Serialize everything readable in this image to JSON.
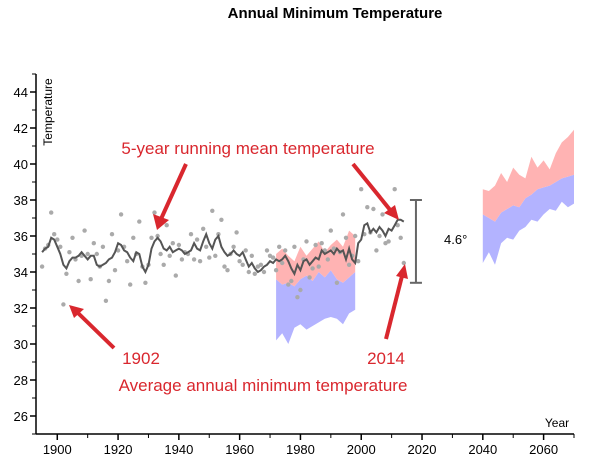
{
  "chart_data": {
    "type": "line",
    "title": "Annual Minimum Temperature",
    "xlabel": "Year",
    "ylabel": "Temperature",
    "xlim": [
      1893,
      2070
    ],
    "ylim": [
      25,
      45
    ],
    "x_ticks": [
      1900,
      1920,
      1940,
      1960,
      1980,
      2000,
      2020,
      2040,
      2060
    ],
    "y_ticks": [
      26,
      28,
      30,
      32,
      34,
      36,
      38,
      40,
      42,
      44
    ],
    "grid": false,
    "colors": {
      "line": "#555555",
      "points": "#aaaaaa",
      "high_band": "#ffb3b3",
      "low_band": "#b3b3ff",
      "annotation": "#d9272e",
      "range_bar": "#666666"
    },
    "annotations": {
      "running_mean": "5-year running mean temperature",
      "year_1902": "1902",
      "year_2014": "2014",
      "average_min": "Average annual minimum temperature",
      "range": "4.6°"
    },
    "range_bar": {
      "x": 2018,
      "y_low": 33.4,
      "y_high": 38.0
    },
    "points": [
      [
        1895,
        34.3
      ],
      [
        1896,
        35.3
      ],
      [
        1897,
        35.5
      ],
      [
        1898,
        37.3
      ],
      [
        1899,
        36.1
      ],
      [
        1900,
        35.8
      ],
      [
        1901,
        35.4
      ],
      [
        1902,
        32.2
      ],
      [
        1903,
        33.9
      ],
      [
        1904,
        35.1
      ],
      [
        1905,
        35.9
      ],
      [
        1906,
        34.7
      ],
      [
        1907,
        33.5
      ],
      [
        1908,
        34.9
      ],
      [
        1909,
        36.3
      ],
      [
        1910,
        35.0
      ],
      [
        1911,
        33.6
      ],
      [
        1912,
        35.6
      ],
      [
        1913,
        35.0
      ],
      [
        1914,
        34.3
      ],
      [
        1915,
        35.4
      ],
      [
        1916,
        32.4
      ],
      [
        1917,
        33.5
      ],
      [
        1918,
        36.1
      ],
      [
        1919,
        34.1
      ],
      [
        1920,
        35.2
      ],
      [
        1921,
        37.2
      ],
      [
        1922,
        35.4
      ],
      [
        1923,
        34.6
      ],
      [
        1924,
        33.3
      ],
      [
        1925,
        35.9
      ],
      [
        1926,
        35.0
      ],
      [
        1927,
        36.8
      ],
      [
        1928,
        34.3
      ],
      [
        1929,
        33.4
      ],
      [
        1930,
        34.4
      ],
      [
        1931,
        35.9
      ],
      [
        1932,
        37.3
      ],
      [
        1933,
        36.0
      ],
      [
        1934,
        35.0
      ],
      [
        1935,
        34.4
      ],
      [
        1936,
        36.6
      ],
      [
        1937,
        34.9
      ],
      [
        1938,
        35.6
      ],
      [
        1939,
        33.8
      ],
      [
        1940,
        35.5
      ],
      [
        1941,
        34.7
      ],
      [
        1942,
        35.1
      ],
      [
        1943,
        35.0
      ],
      [
        1944,
        36.1
      ],
      [
        1945,
        34.7
      ],
      [
        1946,
        35.8
      ],
      [
        1947,
        34.6
      ],
      [
        1948,
        36.4
      ],
      [
        1949,
        35.4
      ],
      [
        1950,
        34.8
      ],
      [
        1951,
        37.4
      ],
      [
        1952,
        34.9
      ],
      [
        1953,
        36.1
      ],
      [
        1954,
        36.9
      ],
      [
        1955,
        34.3
      ],
      [
        1956,
        34.1
      ],
      [
        1957,
        35.0
      ],
      [
        1958,
        35.4
      ],
      [
        1959,
        36.2
      ],
      [
        1960,
        34.6
      ],
      [
        1961,
        34.4
      ],
      [
        1962,
        35.2
      ],
      [
        1963,
        34.0
      ],
      [
        1964,
        34.9
      ],
      [
        1965,
        33.9
      ],
      [
        1966,
        34.3
      ],
      [
        1967,
        34.4
      ],
      [
        1968,
        34.0
      ],
      [
        1969,
        35.2
      ],
      [
        1970,
        34.9
      ],
      [
        1971,
        34.8
      ],
      [
        1972,
        34.1
      ],
      [
        1973,
        35.4
      ],
      [
        1974,
        34.5
      ],
      [
        1975,
        35.2
      ],
      [
        1976,
        33.3
      ],
      [
        1977,
        33.5
      ],
      [
        1978,
        35.4
      ],
      [
        1979,
        32.6
      ],
      [
        1980,
        33.0
      ],
      [
        1981,
        34.7
      ],
      [
        1982,
        35.7
      ],
      [
        1983,
        33.7
      ],
      [
        1984,
        34.2
      ],
      [
        1985,
        35.5
      ],
      [
        1986,
        34.3
      ],
      [
        1987,
        35.6
      ],
      [
        1988,
        35.2
      ],
      [
        1989,
        34.7
      ],
      [
        1990,
        36.3
      ],
      [
        1991,
        35.3
      ],
      [
        1992,
        33.4
      ],
      [
        1993,
        35.1
      ],
      [
        1994,
        37.2
      ],
      [
        1995,
        35.9
      ],
      [
        1996,
        34.4
      ],
      [
        1997,
        34.9
      ],
      [
        1998,
        36.0
      ],
      [
        1999,
        34.6
      ],
      [
        2000,
        38.6
      ],
      [
        2001,
        36.1
      ],
      [
        2002,
        37.6
      ],
      [
        2003,
        36.2
      ],
      [
        2004,
        37.5
      ],
      [
        2005,
        35.2
      ],
      [
        2006,
        36.0
      ],
      [
        2007,
        37.2
      ],
      [
        2008,
        35.6
      ],
      [
        2009,
        35.7
      ],
      [
        2010,
        37.3
      ],
      [
        2011,
        38.6
      ],
      [
        2012,
        36.6
      ],
      [
        2013,
        35.9
      ],
      [
        2014,
        34.5
      ]
    ],
    "running_mean": [
      [
        1895,
        35.1
      ],
      [
        1896,
        35.3
      ],
      [
        1897,
        35.4
      ],
      [
        1898,
        35.9
      ],
      [
        1899,
        35.8
      ],
      [
        1900,
        35.4
      ],
      [
        1901,
        35.0
      ],
      [
        1902,
        34.4
      ],
      [
        1903,
        34.2
      ],
      [
        1904,
        34.6
      ],
      [
        1905,
        34.8
      ],
      [
        1906,
        34.8
      ],
      [
        1907,
        34.9
      ],
      [
        1908,
        35.1
      ],
      [
        1909,
        34.9
      ],
      [
        1910,
        34.7
      ],
      [
        1911,
        34.9
      ],
      [
        1912,
        34.9
      ],
      [
        1913,
        34.4
      ],
      [
        1914,
        34.3
      ],
      [
        1915,
        34.4
      ],
      [
        1916,
        34.5
      ],
      [
        1917,
        34.7
      ],
      [
        1918,
        34.8
      ],
      [
        1919,
        35.1
      ],
      [
        1920,
        35.6
      ],
      [
        1921,
        35.5
      ],
      [
        1922,
        35.2
      ],
      [
        1923,
        35.1
      ],
      [
        1924,
        34.8
      ],
      [
        1925,
        34.6
      ],
      [
        1926,
        35.1
      ],
      [
        1927,
        35.0
      ],
      [
        1928,
        34.3
      ],
      [
        1929,
        34.0
      ],
      [
        1930,
        34.4
      ],
      [
        1931,
        35.3
      ],
      [
        1932,
        35.7
      ],
      [
        1933,
        35.9
      ],
      [
        1934,
        35.7
      ],
      [
        1935,
        35.3
      ],
      [
        1936,
        35.2
      ],
      [
        1937,
        35.4
      ],
      [
        1938,
        35.1
      ],
      [
        1939,
        35.2
      ],
      [
        1940,
        35.3
      ],
      [
        1941,
        35.2
      ],
      [
        1942,
        35.0
      ],
      [
        1943,
        35.1
      ],
      [
        1944,
        35.2
      ],
      [
        1945,
        35.6
      ],
      [
        1946,
        35.3
      ],
      [
        1947,
        35.2
      ],
      [
        1948,
        35.7
      ],
      [
        1949,
        36.1
      ],
      [
        1950,
        35.6
      ],
      [
        1951,
        35.3
      ],
      [
        1952,
        35.8
      ],
      [
        1953,
        36.0
      ],
      [
        1954,
        35.4
      ],
      [
        1955,
        35.1
      ],
      [
        1956,
        34.9
      ],
      [
        1957,
        35.0
      ],
      [
        1958,
        35.2
      ],
      [
        1959,
        35.0
      ],
      [
        1960,
        34.9
      ],
      [
        1961,
        35.1
      ],
      [
        1962,
        34.7
      ],
      [
        1963,
        34.3
      ],
      [
        1964,
        34.5
      ],
      [
        1965,
        34.2
      ],
      [
        1966,
        34.0
      ],
      [
        1967,
        34.1
      ],
      [
        1968,
        34.3
      ],
      [
        1969,
        34.4
      ],
      [
        1970,
        34.6
      ],
      [
        1971,
        34.5
      ],
      [
        1972,
        34.7
      ],
      [
        1973,
        34.6
      ],
      [
        1974,
        34.7
      ],
      [
        1975,
        34.9
      ],
      [
        1976,
        34.6
      ],
      [
        1977,
        34.2
      ],
      [
        1978,
        33.9
      ],
      [
        1979,
        34.4
      ],
      [
        1980,
        34.1
      ],
      [
        1981,
        34.6
      ],
      [
        1982,
        34.7
      ],
      [
        1983,
        34.4
      ],
      [
        1984,
        34.6
      ],
      [
        1985,
        34.8
      ],
      [
        1986,
        34.7
      ],
      [
        1987,
        35.2
      ],
      [
        1988,
        35.0
      ],
      [
        1989,
        35.1
      ],
      [
        1990,
        35.2
      ],
      [
        1991,
        35.0
      ],
      [
        1992,
        35.3
      ],
      [
        1993,
        35.1
      ],
      [
        1994,
        35.2
      ],
      [
        1995,
        34.7
      ],
      [
        1996,
        35.3
      ],
      [
        1997,
        34.7
      ],
      [
        1998,
        34.5
      ],
      [
        1999,
        35.6
      ],
      [
        2000,
        35.8
      ],
      [
        2001,
        36.6
      ],
      [
        2002,
        36.7
      ],
      [
        2003,
        36.2
      ],
      [
        2004,
        36.4
      ],
      [
        2005,
        36.2
      ],
      [
        2006,
        36.5
      ],
      [
        2007,
        36.3
      ],
      [
        2008,
        36.0
      ],
      [
        2009,
        36.4
      ],
      [
        2010,
        36.3
      ],
      [
        2011,
        36.6
      ],
      [
        2012,
        36.9
      ],
      [
        2013,
        36.9
      ],
      [
        2014,
        36.8
      ]
    ],
    "projections": {
      "historical_high": [
        [
          1972,
          35.0,
          33.6
        ],
        [
          1974,
          35.3,
          33.3
        ],
        [
          1976,
          34.9,
          33.4
        ],
        [
          1978,
          34.6,
          33.2
        ],
        [
          1980,
          35.4,
          33.6
        ],
        [
          1982,
          34.9,
          33.8
        ],
        [
          1984,
          35.3,
          33.5
        ],
        [
          1986,
          35.7,
          34.0
        ],
        [
          1988,
          35.1,
          33.7
        ],
        [
          1990,
          35.5,
          34.1
        ],
        [
          1992,
          35.8,
          33.6
        ],
        [
          1994,
          35.4,
          33.4
        ],
        [
          1996,
          36.3,
          33.7
        ],
        [
          1998,
          36.0,
          34.0
        ]
      ],
      "historical_low": [
        [
          1972,
          33.6,
          30.2
        ],
        [
          1974,
          33.3,
          30.6
        ],
        [
          1976,
          33.4,
          30.0
        ],
        [
          1978,
          33.2,
          30.9
        ],
        [
          1980,
          33.6,
          31.1
        ],
        [
          1982,
          33.8,
          30.8
        ],
        [
          1984,
          33.5,
          31.0
        ],
        [
          1986,
          34.0,
          31.2
        ],
        [
          1988,
          33.7,
          31.4
        ],
        [
          1990,
          34.1,
          31.5
        ],
        [
          1992,
          33.6,
          31.4
        ],
        [
          1994,
          33.4,
          31.1
        ],
        [
          1996,
          33.7,
          31.7
        ],
        [
          1998,
          34.0,
          31.9
        ]
      ],
      "future_high": [
        [
          2040,
          38.6,
          37.2
        ],
        [
          2042,
          38.5,
          37.0
        ],
        [
          2044,
          38.8,
          36.8
        ],
        [
          2046,
          39.5,
          37.3
        ],
        [
          2048,
          39.0,
          37.5
        ],
        [
          2050,
          39.8,
          37.7
        ],
        [
          2052,
          39.4,
          37.6
        ],
        [
          2054,
          39.2,
          38.1
        ],
        [
          2056,
          40.4,
          38.3
        ],
        [
          2058,
          39.8,
          38.6
        ],
        [
          2060,
          40.2,
          38.7
        ],
        [
          2062,
          39.7,
          38.8
        ],
        [
          2064,
          40.6,
          39.0
        ],
        [
          2066,
          41.2,
          39.2
        ],
        [
          2068,
          41.5,
          39.3
        ],
        [
          2070,
          41.9,
          39.4
        ]
      ],
      "future_low": [
        [
          2040,
          37.2,
          34.5
        ],
        [
          2042,
          37.0,
          35.1
        ],
        [
          2044,
          36.8,
          34.4
        ],
        [
          2046,
          37.3,
          35.6
        ],
        [
          2048,
          37.5,
          35.9
        ],
        [
          2050,
          37.7,
          35.8
        ],
        [
          2052,
          37.6,
          36.3
        ],
        [
          2054,
          38.1,
          36.5
        ],
        [
          2056,
          38.3,
          36.9
        ],
        [
          2058,
          38.6,
          36.8
        ],
        [
          2060,
          38.7,
          37.2
        ],
        [
          2062,
          38.8,
          37.5
        ],
        [
          2064,
          39.0,
          37.4
        ],
        [
          2066,
          39.2,
          37.9
        ],
        [
          2068,
          39.3,
          37.6
        ],
        [
          2070,
          39.4,
          37.8
        ]
      ]
    }
  }
}
